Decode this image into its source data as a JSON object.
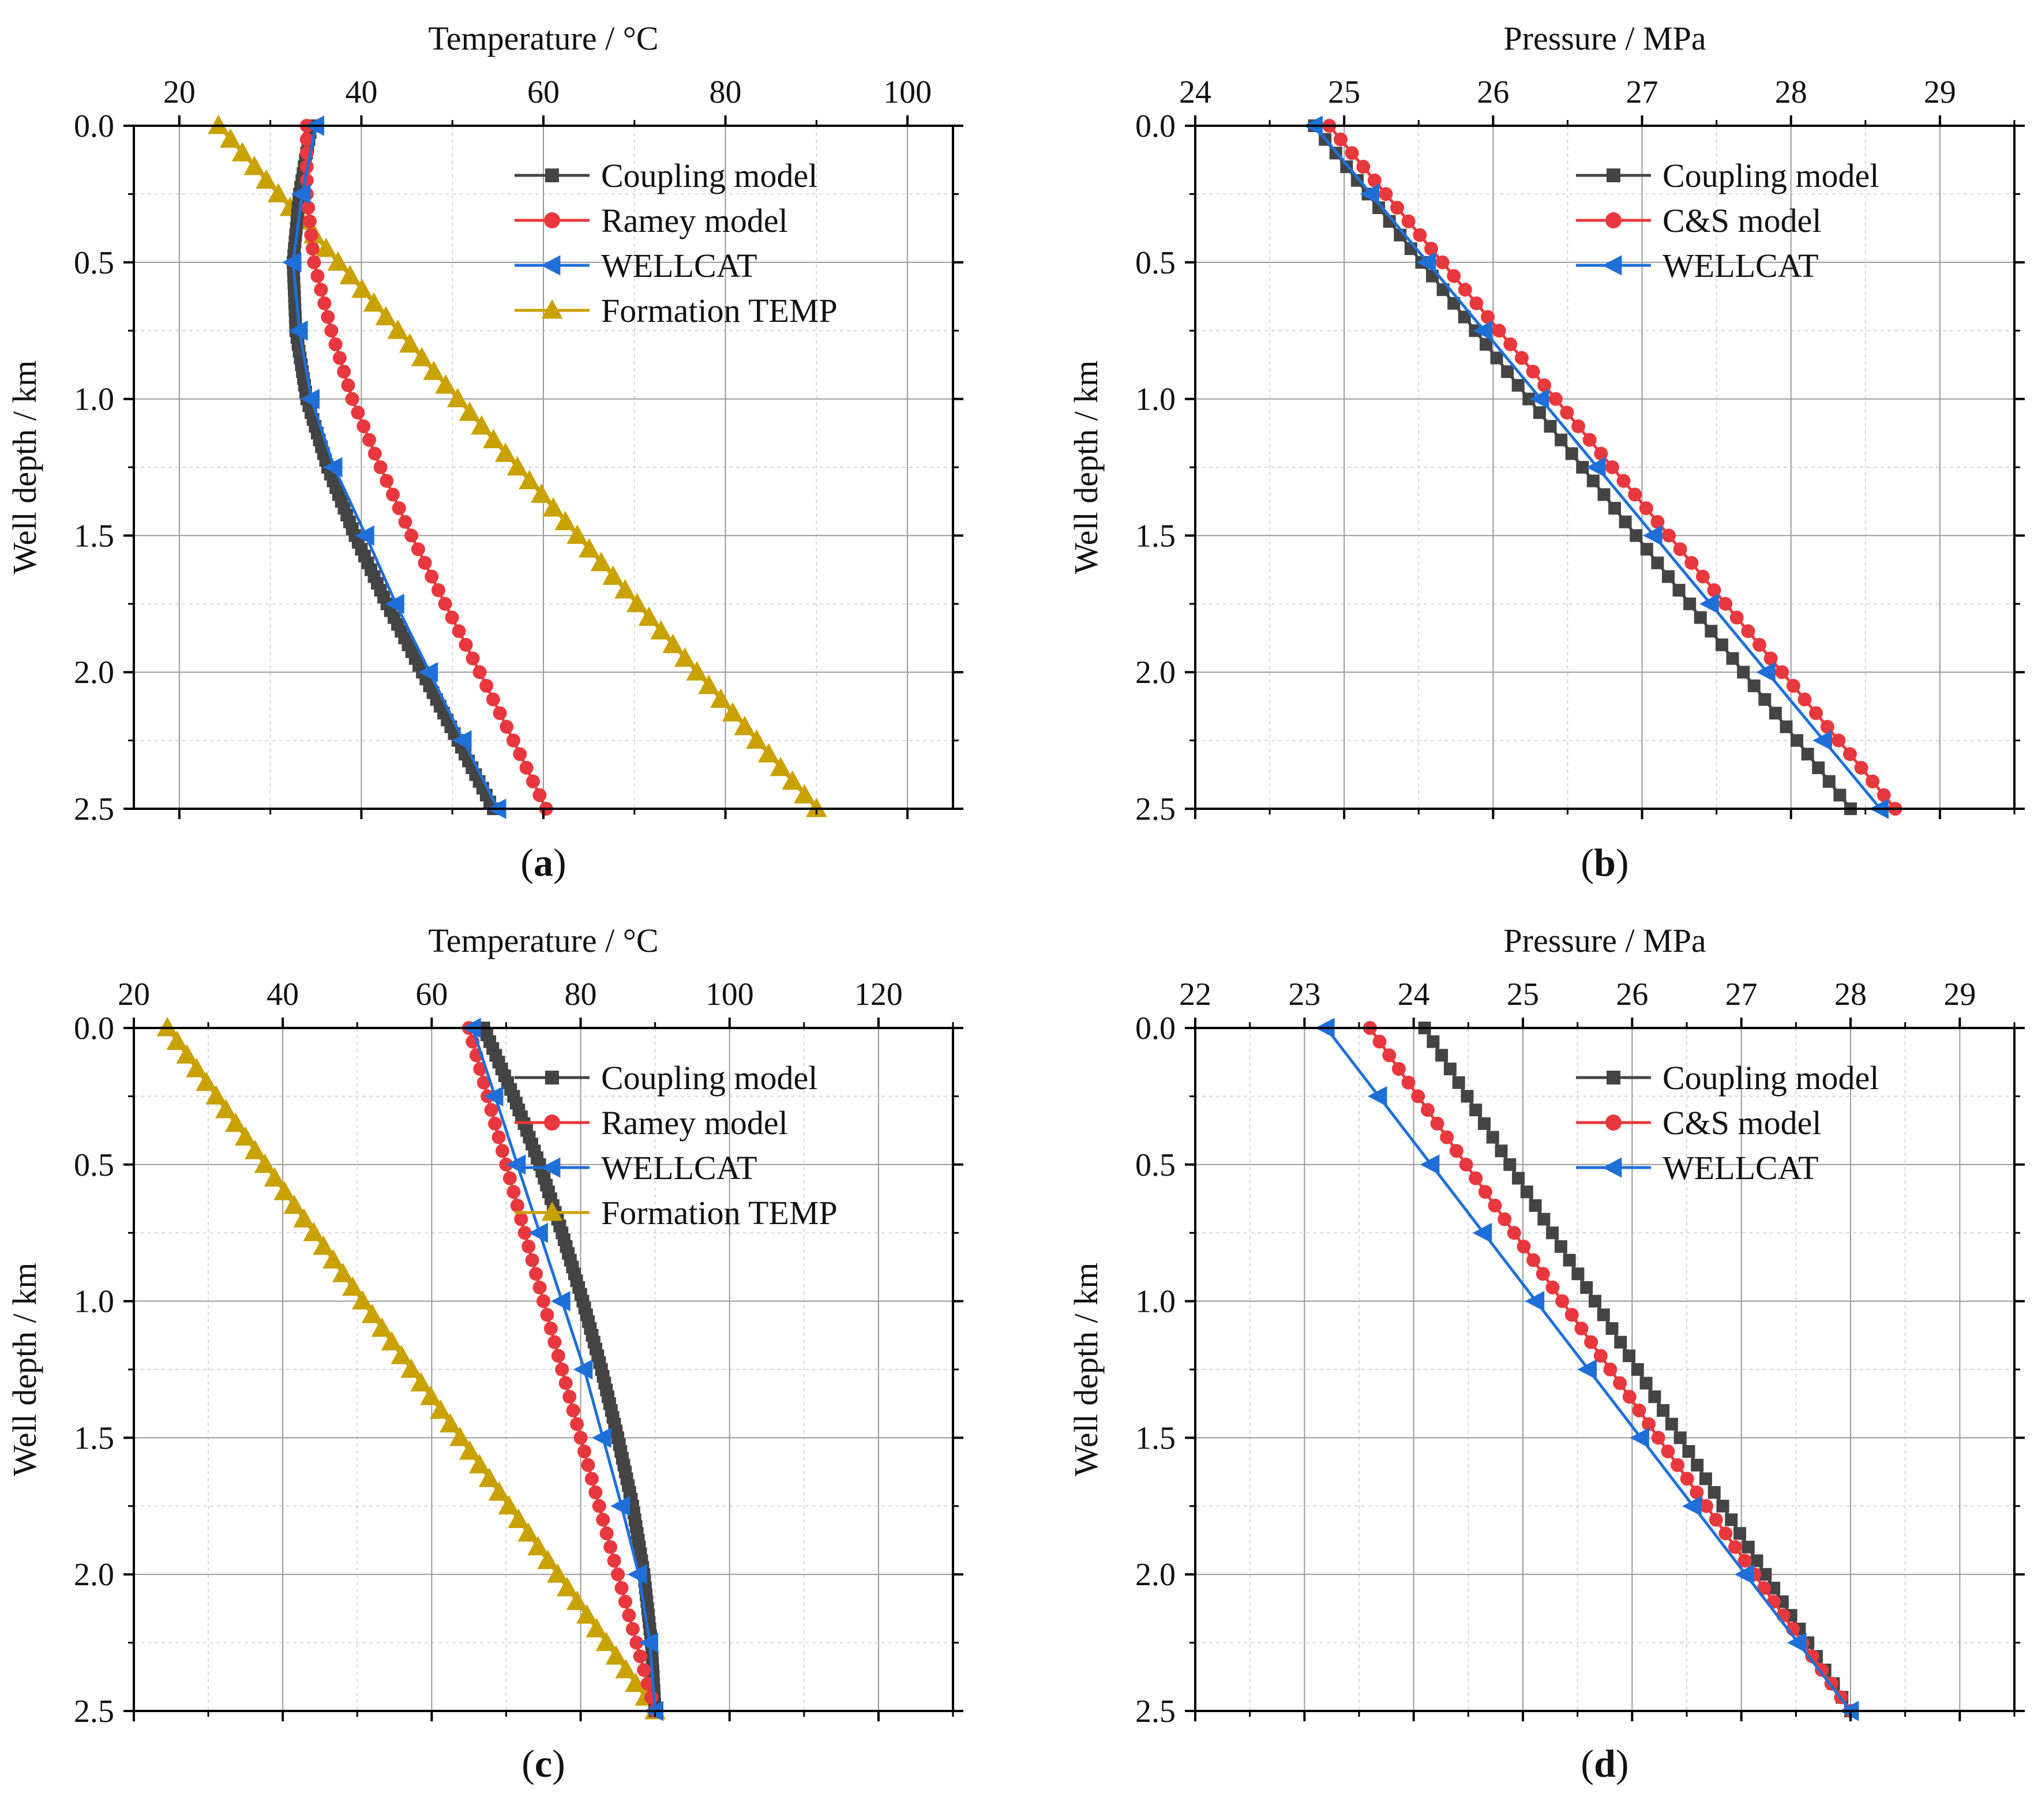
{
  "figure": {
    "panel_labels": [
      {
        "open": "(",
        "letter": "a",
        "close": ")"
      },
      {
        "open": "(",
        "letter": "b",
        "close": ")"
      },
      {
        "open": "(",
        "letter": "c",
        "close": ")"
      },
      {
        "open": "(",
        "letter": "d",
        "close": ")"
      }
    ],
    "colors": {
      "coupling": "#444444",
      "ramey": "#e8383d",
      "wellcat": "#1f6fd8",
      "formation": "#c9a100",
      "grid": "#9a9a9a",
      "minor_grid": "#d6d6d6",
      "axis": "#000000"
    },
    "marker_icons": {
      "coupling": "square-marker-icon",
      "ramey": "circle-marker-icon",
      "wellcat": "left-triangle-marker-icon",
      "formation": "up-triangle-marker-icon"
    }
  },
  "chart_data": [
    {
      "id": "a",
      "type": "line",
      "title": "",
      "xlabel": "Temperature / °C",
      "ylabel": "Well depth / km",
      "xlim": [
        15,
        105
      ],
      "ylim": [
        0,
        2.5
      ],
      "x_ticks": [
        20,
        40,
        60,
        80,
        100
      ],
      "y_ticks": [
        0.0,
        0.5,
        1.0,
        1.5,
        2.0,
        2.5
      ],
      "y_tick_labels": [
        "0.0",
        "0.5",
        "1.0",
        "1.5",
        "2.0",
        "2.5"
      ],
      "x_axis_position": "top",
      "y_inverted": true,
      "grid": true,
      "legend_position": "top-right",
      "series": [
        {
          "name": "Coupling model",
          "key": "coupling",
          "marker": "square",
          "marker_step": 0.025,
          "points": [
            [
              34.5,
              0.0
            ],
            [
              33.2,
              0.25
            ],
            [
              32.5,
              0.5
            ],
            [
              32.8,
              0.75
            ],
            [
              34.0,
              1.0
            ],
            [
              36.3,
              1.25
            ],
            [
              39.3,
              1.5
            ],
            [
              42.8,
              1.75
            ],
            [
              46.7,
              2.0
            ],
            [
              50.6,
              2.25
            ],
            [
              54.5,
              2.5
            ]
          ]
        },
        {
          "name": "Ramey model",
          "key": "ramey",
          "marker": "circle",
          "marker_step": 0.05,
          "points": [
            [
              34.0,
              0.0
            ],
            [
              34.0,
              0.25
            ],
            [
              34.8,
              0.5
            ],
            [
              36.7,
              0.75
            ],
            [
              39.0,
              1.0
            ],
            [
              42.1,
              1.25
            ],
            [
              45.5,
              1.5
            ],
            [
              49.2,
              1.75
            ],
            [
              53.0,
              2.0
            ],
            [
              56.7,
              2.25
            ],
            [
              60.3,
              2.5
            ]
          ]
        },
        {
          "name": "WELLCAT",
          "key": "wellcat",
          "marker": "left-triangle",
          "marker_step": 0.25,
          "points": [
            [
              35.0,
              0.0
            ],
            [
              33.5,
              0.25
            ],
            [
              32.5,
              0.5
            ],
            [
              33.2,
              0.75
            ],
            [
              34.5,
              1.0
            ],
            [
              37.0,
              1.25
            ],
            [
              40.5,
              1.5
            ],
            [
              43.8,
              1.75
            ],
            [
              47.5,
              2.0
            ],
            [
              51.2,
              2.25
            ],
            [
              55.0,
              2.5
            ]
          ]
        },
        {
          "name": "Formation TEMP",
          "key": "formation",
          "marker": "up-triangle",
          "marker_step": 0.05,
          "points": [
            [
              24.3,
              0.0
            ],
            [
              90.0,
              2.5
            ]
          ]
        }
      ]
    },
    {
      "id": "b",
      "type": "line",
      "title": "",
      "xlabel": "Pressure / MPa",
      "ylabel": "Well depth / km",
      "xlim": [
        24,
        29.5
      ],
      "ylim": [
        0,
        2.5
      ],
      "x_ticks": [
        24,
        25,
        26,
        27,
        28,
        29
      ],
      "y_ticks": [
        0.0,
        0.5,
        1.0,
        1.5,
        2.0,
        2.5
      ],
      "y_tick_labels": [
        "0.0",
        "0.5",
        "1.0",
        "1.5",
        "2.0",
        "2.5"
      ],
      "x_axis_position": "top",
      "y_inverted": true,
      "grid": true,
      "legend_position": "top-right",
      "series": [
        {
          "name": "Coupling model",
          "key": "coupling",
          "marker": "square",
          "marker_step": 0.05,
          "points": [
            [
              24.8,
              0.0
            ],
            [
              28.4,
              2.5
            ]
          ]
        },
        {
          "name": "C&S model",
          "key": "ramey",
          "marker": "circle",
          "marker_step": 0.05,
          "points": [
            [
              24.9,
              0.0
            ],
            [
              28.7,
              2.5
            ]
          ]
        },
        {
          "name": "WELLCAT",
          "key": "wellcat",
          "marker": "left-triangle",
          "marker_step": 0.25,
          "points": [
            [
              24.8,
              0.0
            ],
            [
              28.6,
              2.5
            ]
          ]
        }
      ]
    },
    {
      "id": "c",
      "type": "line",
      "title": "",
      "xlabel": "Temperature / °C",
      "ylabel": "Well depth / km",
      "xlim": [
        20,
        130
      ],
      "ylim": [
        0,
        2.5
      ],
      "x_ticks": [
        20,
        40,
        60,
        80,
        100,
        120
      ],
      "y_ticks": [
        0.0,
        0.5,
        1.0,
        1.5,
        2.0,
        2.5
      ],
      "y_tick_labels": [
        "0.0",
        "0.5",
        "1.0",
        "1.5",
        "2.0",
        "2.5"
      ],
      "x_axis_position": "top",
      "y_inverted": true,
      "grid": true,
      "legend_position": "top-right",
      "series": [
        {
          "name": "Coupling model",
          "key": "coupling",
          "marker": "square",
          "marker_step": 0.025,
          "points": [
            [
              67.0,
              0.0
            ],
            [
              71.0,
              0.25
            ],
            [
              74.5,
              0.5
            ],
            [
              77.5,
              0.75
            ],
            [
              80.3,
              1.0
            ],
            [
              82.8,
              1.25
            ],
            [
              85.0,
              1.5
            ],
            [
              87.0,
              1.75
            ],
            [
              88.5,
              2.0
            ],
            [
              89.5,
              2.25
            ],
            [
              90.0,
              2.5
            ]
          ]
        },
        {
          "name": "Ramey model",
          "key": "ramey",
          "marker": "circle",
          "marker_step": 0.05,
          "points": [
            [
              65.0,
              0.0
            ],
            [
              67.5,
              0.25
            ],
            [
              70.0,
              0.5
            ],
            [
              72.5,
              0.75
            ],
            [
              75.0,
              1.0
            ],
            [
              77.5,
              1.25
            ],
            [
              80.0,
              1.5
            ],
            [
              82.5,
              1.75
            ],
            [
              85.0,
              2.0
            ],
            [
              87.5,
              2.25
            ],
            [
              90.0,
              2.5
            ]
          ]
        },
        {
          "name": "WELLCAT",
          "key": "wellcat",
          "marker": "left-triangle",
          "marker_step": 0.25,
          "points": [
            [
              65.5,
              0.0
            ],
            [
              68.5,
              0.25
            ],
            [
              71.5,
              0.5
            ],
            [
              74.5,
              0.75
            ],
            [
              77.5,
              1.0
            ],
            [
              80.5,
              1.25
            ],
            [
              83.0,
              1.5
            ],
            [
              85.5,
              1.75
            ],
            [
              87.8,
              2.0
            ],
            [
              89.3,
              2.25
            ],
            [
              90.0,
              2.5
            ]
          ]
        },
        {
          "name": "Formation TEMP",
          "key": "formation",
          "marker": "up-triangle",
          "marker_step": 0.05,
          "points": [
            [
              24.5,
              0.0
            ],
            [
              90.0,
              2.5
            ]
          ]
        }
      ]
    },
    {
      "id": "d",
      "type": "line",
      "title": "",
      "xlabel": "Pressure / MPa",
      "ylabel": "Well depth / km",
      "xlim": [
        22,
        29.5
      ],
      "ylim": [
        0,
        2.5
      ],
      "x_ticks": [
        22,
        23,
        24,
        25,
        26,
        27,
        28,
        29
      ],
      "y_ticks": [
        0.0,
        0.5,
        1.0,
        1.5,
        2.0,
        2.5
      ],
      "y_tick_labels": [
        "0.0",
        "0.5",
        "1.0",
        "1.5",
        "2.0",
        "2.5"
      ],
      "x_axis_position": "top",
      "y_inverted": true,
      "grid": true,
      "legend_position": "top-right",
      "series": [
        {
          "name": "Coupling model",
          "key": "coupling",
          "marker": "square",
          "marker_step": 0.05,
          "points": [
            [
              24.1,
              0.0
            ],
            [
              28.0,
              2.5
            ]
          ]
        },
        {
          "name": "C&S model",
          "key": "ramey",
          "marker": "circle",
          "marker_step": 0.05,
          "points": [
            [
              23.6,
              0.0
            ],
            [
              28.0,
              2.5
            ]
          ]
        },
        {
          "name": "WELLCAT",
          "key": "wellcat",
          "marker": "left-triangle",
          "marker_step": 0.25,
          "points": [
            [
              23.2,
              0.0
            ],
            [
              28.0,
              2.5
            ]
          ]
        }
      ]
    }
  ]
}
